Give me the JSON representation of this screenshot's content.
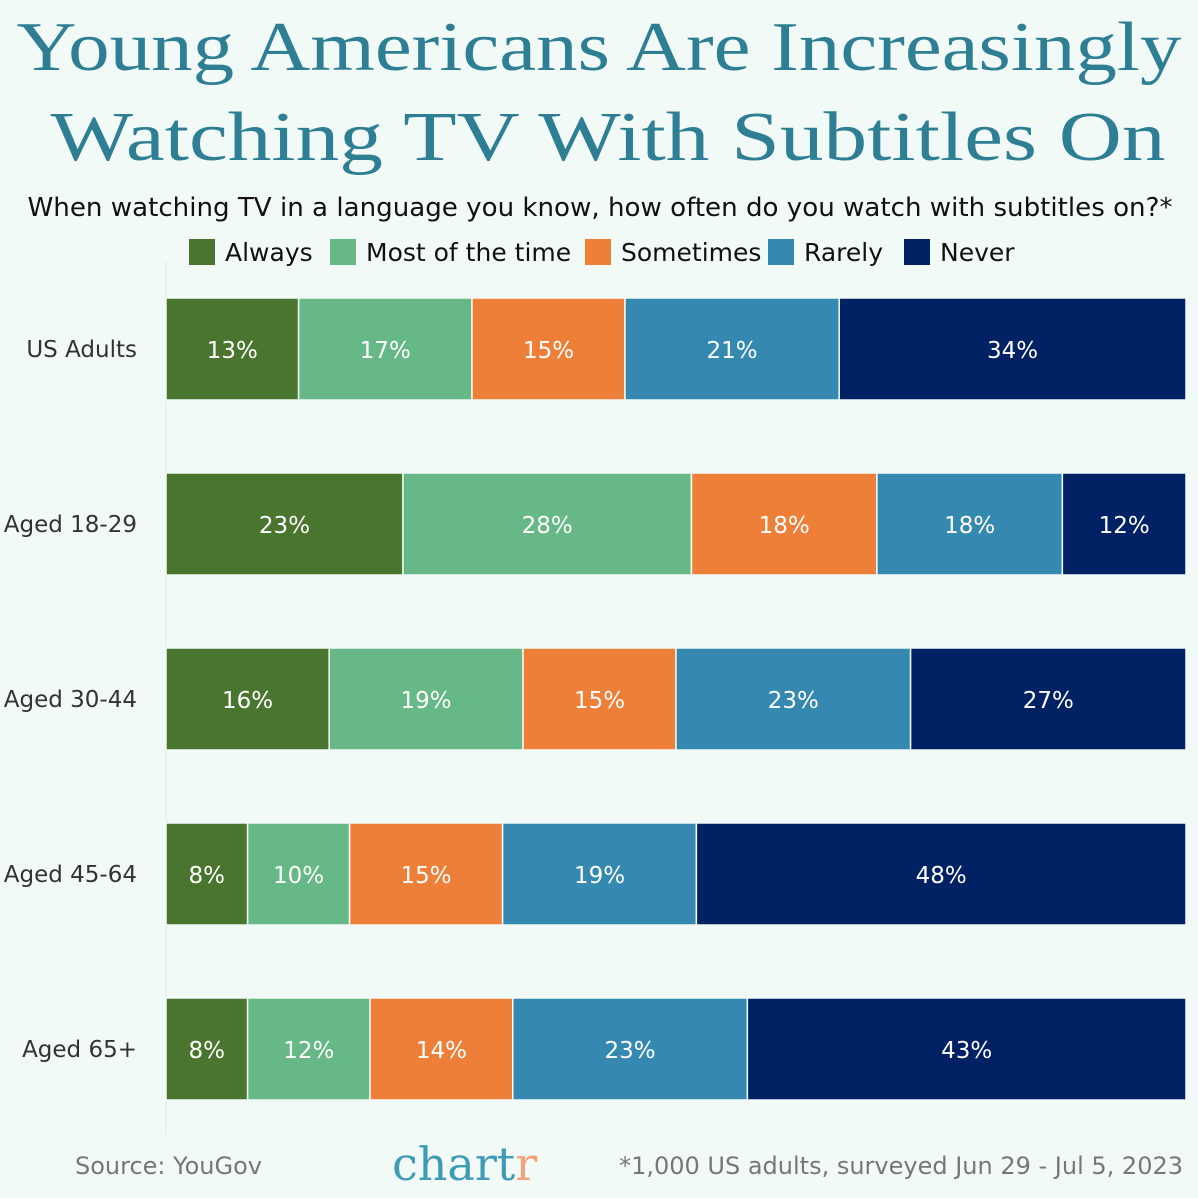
{
  "chart_data": {
    "type": "bar",
    "orientation": "horizontal",
    "stacked": true,
    "title": "Young Americans Are Increasingly Watching TV With Subtitles On",
    "title_lines": [
      "Young Americans Are Increasingly",
      "Watching TV With Subtitles On"
    ],
    "subtitle": "When watching TV in a language you know, how often do you watch with subtitles on?*",
    "categories": [
      "US Adults",
      "Aged 18-29",
      "Aged 30-44",
      "Aged 45-64",
      "Aged 65+"
    ],
    "series": [
      {
        "name": "Always",
        "color": "#4a752f",
        "values": [
          13,
          23,
          16,
          8,
          8
        ]
      },
      {
        "name": "Most of the time",
        "color": "#67b887",
        "values": [
          17,
          28,
          19,
          10,
          12
        ]
      },
      {
        "name": "Sometimes",
        "color": "#ee7f39",
        "values": [
          15,
          18,
          15,
          15,
          14
        ]
      },
      {
        "name": "Rarely",
        "color": "#3589b0",
        "values": [
          21,
          18,
          23,
          19,
          23
        ]
      },
      {
        "name": "Never",
        "color": "#002163",
        "values": [
          34,
          12,
          27,
          48,
          43
        ]
      }
    ],
    "value_suffix": "%",
    "legend_position": "top",
    "grid": false,
    "source": "Source: YouGov",
    "footnote": "*1,000 US adults, surveyed Jun 29 - Jul 5, 2023",
    "logo": {
      "text_main": "chart",
      "text_accent": "r",
      "color_main": "#3e9bb5",
      "color_accent": "#f4a27a"
    }
  }
}
